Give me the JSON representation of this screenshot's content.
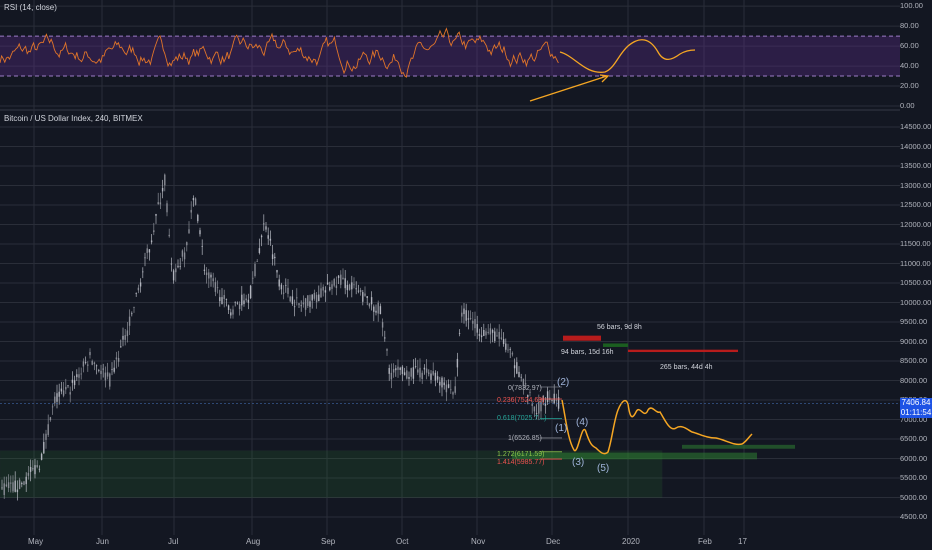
{
  "rsi_pane": {
    "title": "RSI (14, close)",
    "yticks": [
      "100.00",
      "80.00",
      "60.00",
      "40.00",
      "20.00",
      "0.00"
    ],
    "upper_band": 70,
    "lower_band": 30
  },
  "price_pane": {
    "title": "Bitcoin / US Dollar Index, 240, BITMEX",
    "yticks": [
      "14500.00",
      "14000.00",
      "13500.00",
      "13000.00",
      "12500.00",
      "12000.00",
      "11500.00",
      "11000.00",
      "10500.00",
      "10000.00",
      "9500.00",
      "9000.00",
      "8500.00",
      "8000.00",
      "7500.00",
      "7000.00",
      "6500.00",
      "6000.00",
      "5500.00",
      "5000.00",
      "4500.00"
    ],
    "last_price": "7406.84",
    "countdown": "01:11:54"
  },
  "xaxis": {
    "labels": [
      "May",
      "Jun",
      "Jul",
      "Aug",
      "Sep",
      "Oct",
      "Nov",
      "Dec",
      "2020",
      "Feb",
      "17"
    ]
  },
  "annotations": {
    "fib": [
      "0(7832.97)",
      "0.236(7524.69)",
      "0.618(7025.7...)",
      "1(6526.85)",
      "1.272(6171.59)",
      "1.414(5985.77)"
    ],
    "waves": [
      "(1)",
      "(2)",
      "(3)",
      "(4)",
      "(5)"
    ],
    "ranges": [
      "56 bars, 9d 8h",
      "94 bars, 15d 16h",
      "265 bars, 44d 4h"
    ]
  },
  "colors": {
    "background": "#131722",
    "grid": "#2a2e39",
    "up": "#26a69a",
    "down": "#ef5350",
    "candle": "#b2b5be",
    "rsi_line": "#e0742a",
    "rsi_band": "#5b2c8a",
    "projection": "#f5a623",
    "zone": "#2e7d32",
    "range_red": "#b71c1c",
    "range_green": "#1b5e20"
  },
  "chart_data": {
    "type": "line",
    "title": "Bitcoin / US Dollar Index, 240, BITMEX",
    "xlabel": "",
    "ylabel": "",
    "ylim": [
      4500,
      14500
    ],
    "x": [
      "May",
      "Jun",
      "Jul",
      "Aug",
      "Sep",
      "Oct",
      "Nov",
      "Dec",
      "2020",
      "Feb"
    ],
    "series": [
      {
        "name": "",
        "values": [
          5300,
          8500,
          11500,
          10500,
          10300,
          8200,
          9200,
          7400,
          7300,
          6500
        ]
      }
    ]
  }
}
